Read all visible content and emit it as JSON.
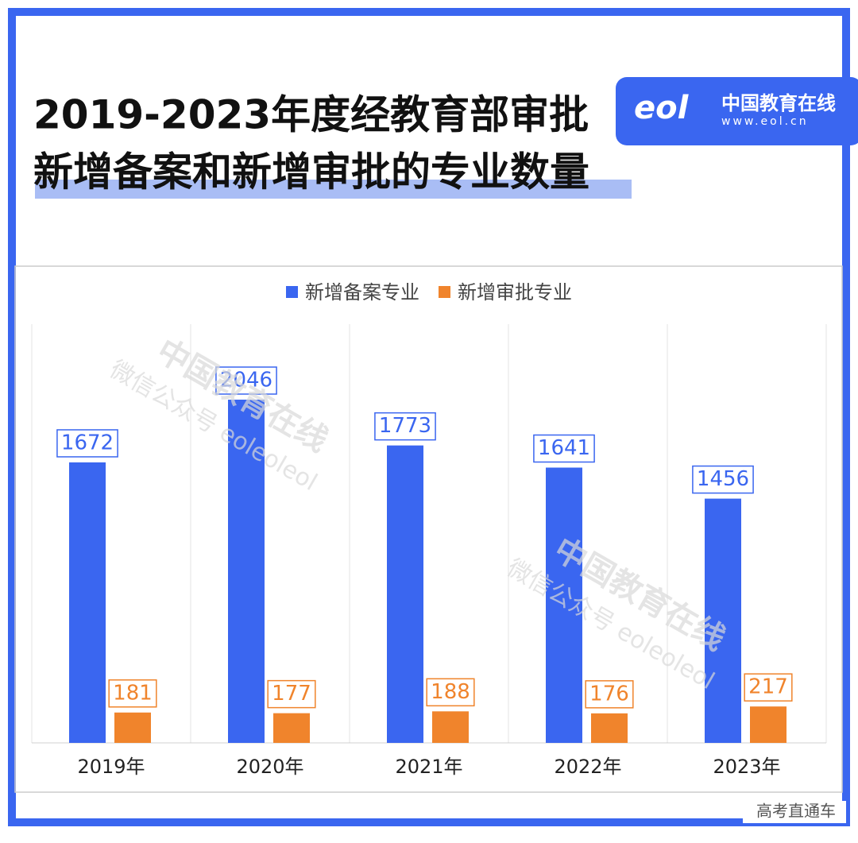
{
  "header": {
    "title_lines": [
      "2019-2023年度经教育部审批",
      "新增备案和新增审批的专业数量"
    ],
    "logo": {
      "mark": "eol",
      "name": "中国教育在线",
      "url": "www.eol.cn"
    }
  },
  "watermark": {
    "title": "中国教育在线",
    "subtitle": "微信公众号 eoleoleol"
  },
  "footer": "高考直通车",
  "chart_data": {
    "type": "bar",
    "categories": [
      "2019年",
      "2020年",
      "2021年",
      "2022年",
      "2023年"
    ],
    "series": [
      {
        "name": "新增备案专业",
        "color": "#3a66f0",
        "values": [
          1672,
          2046,
          1773,
          1641,
          1456
        ]
      },
      {
        "name": "新增审批专业",
        "color": "#f0842c",
        "values": [
          181,
          177,
          188,
          176,
          217
        ]
      }
    ],
    "legend": "top",
    "grid": "vertical"
  }
}
